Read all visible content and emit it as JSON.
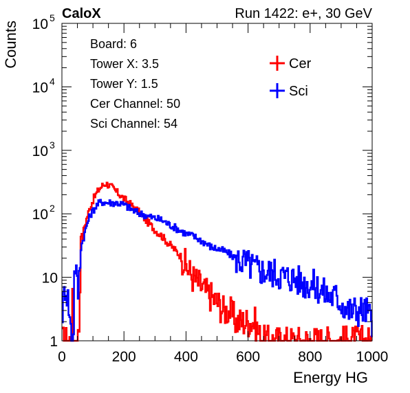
{
  "header": {
    "brand": "CaloX",
    "run_label": "Run 1422: e+, 30 GeV"
  },
  "info_box": {
    "lines": [
      "Board: 6",
      "Tower X: 3.5",
      "Tower Y: 1.5",
      "Cer Channel: 50",
      "Sci Channel: 54"
    ]
  },
  "chart_data": {
    "type": "line",
    "xlabel": "Energy HG",
    "ylabel": "Counts",
    "xlim": [
      0,
      1000
    ],
    "ylim": [
      1,
      100000
    ],
    "yscale": "log",
    "x_ticks": [
      "0",
      "200",
      "400",
      "600",
      "800",
      "1000"
    ],
    "y_ticks": [
      {
        "base": "1",
        "exp": ""
      },
      {
        "base": "10",
        "exp": ""
      },
      {
        "base": "10",
        "exp": "2"
      },
      {
        "base": "10",
        "exp": "3"
      },
      {
        "base": "10",
        "exp": "4"
      },
      {
        "base": "10",
        "exp": "5"
      }
    ],
    "legend_position": "top-right",
    "grid": false,
    "series": [
      {
        "name": "Cer",
        "color": "#ff0000",
        "points": [
          [
            0,
            1
          ],
          [
            30,
            1
          ],
          [
            32,
            16
          ],
          [
            34,
            1
          ],
          [
            36,
            1
          ],
          [
            40,
            1
          ],
          [
            45,
            1
          ],
          [
            50,
            1
          ],
          [
            55,
            2
          ],
          [
            60,
            50
          ],
          [
            65,
            40
          ],
          [
            70,
            60
          ],
          [
            80,
            90
          ],
          [
            90,
            130
          ],
          [
            100,
            170
          ],
          [
            110,
            210
          ],
          [
            120,
            250
          ],
          [
            130,
            280
          ],
          [
            140,
            300
          ],
          [
            150,
            285
          ],
          [
            160,
            260
          ],
          [
            170,
            230
          ],
          [
            180,
            210
          ],
          [
            190,
            190
          ],
          [
            200,
            170
          ],
          [
            220,
            140
          ],
          [
            240,
            115
          ],
          [
            260,
            90
          ],
          [
            280,
            70
          ],
          [
            300,
            55
          ],
          [
            320,
            45
          ],
          [
            340,
            35
          ],
          [
            360,
            28
          ],
          [
            380,
            22
          ],
          [
            400,
            15
          ],
          [
            420,
            10
          ],
          [
            440,
            8
          ],
          [
            460,
            6
          ],
          [
            480,
            5
          ],
          [
            500,
            4
          ],
          [
            520,
            3
          ],
          [
            540,
            3
          ],
          [
            560,
            2
          ],
          [
            580,
            2
          ],
          [
            600,
            2
          ],
          [
            620,
            2
          ],
          [
            640,
            1
          ],
          [
            660,
            1
          ],
          [
            700,
            1
          ],
          [
            800,
            1
          ],
          [
            1000,
            1
          ]
        ]
      },
      {
        "name": "Sci",
        "color": "#0000ff",
        "points": [
          [
            0,
            3
          ],
          [
            10,
            8
          ],
          [
            20,
            4
          ],
          [
            30,
            1
          ],
          [
            35,
            1
          ],
          [
            40,
            20
          ],
          [
            45,
            12
          ],
          [
            50,
            5
          ],
          [
            55,
            12
          ],
          [
            60,
            30
          ],
          [
            70,
            45
          ],
          [
            80,
            70
          ],
          [
            90,
            95
          ],
          [
            100,
            115
          ],
          [
            110,
            135
          ],
          [
            120,
            150
          ],
          [
            130,
            155
          ],
          [
            140,
            150
          ],
          [
            160,
            150
          ],
          [
            180,
            148
          ],
          [
            200,
            138
          ],
          [
            220,
            120
          ],
          [
            240,
            105
          ],
          [
            260,
            98
          ],
          [
            280,
            90
          ],
          [
            300,
            85
          ],
          [
            320,
            80
          ],
          [
            340,
            70
          ],
          [
            360,
            62
          ],
          [
            380,
            55
          ],
          [
            400,
            48
          ],
          [
            420,
            45
          ],
          [
            440,
            40
          ],
          [
            460,
            35
          ],
          [
            480,
            30
          ],
          [
            500,
            28
          ],
          [
            520,
            26
          ],
          [
            540,
            23
          ],
          [
            560,
            20
          ],
          [
            580,
            18
          ],
          [
            600,
            16
          ],
          [
            620,
            14
          ],
          [
            640,
            13
          ],
          [
            660,
            12
          ],
          [
            680,
            12
          ],
          [
            700,
            11
          ],
          [
            720,
            10
          ],
          [
            740,
            10
          ],
          [
            760,
            9
          ],
          [
            780,
            8
          ],
          [
            800,
            8
          ],
          [
            820,
            7
          ],
          [
            840,
            6
          ],
          [
            860,
            5
          ],
          [
            880,
            5
          ],
          [
            900,
            4
          ],
          [
            920,
            3
          ],
          [
            940,
            3
          ],
          [
            960,
            3
          ],
          [
            980,
            3
          ],
          [
            1000,
            2
          ]
        ]
      }
    ]
  }
}
